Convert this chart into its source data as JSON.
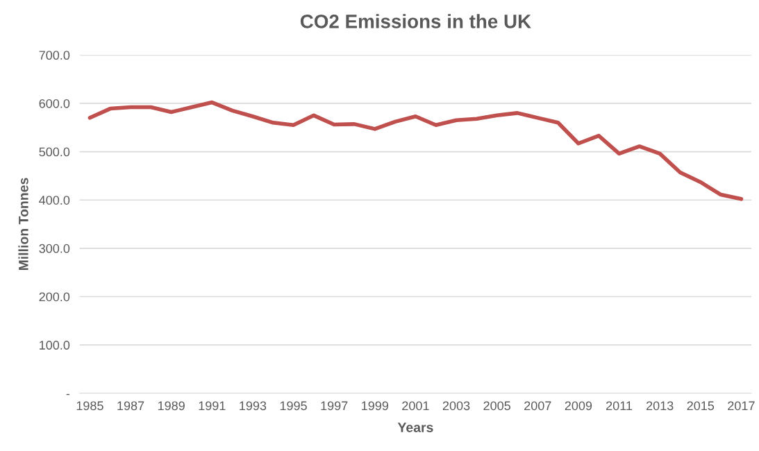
{
  "chart_data": {
    "type": "line",
    "title": "CO2 Emissions in the UK",
    "xlabel": "Years",
    "ylabel": "Million Tonnes",
    "categories": [
      "1985",
      null,
      "1987",
      null,
      "1989",
      null,
      "1991",
      null,
      "1993",
      null,
      "1995",
      null,
      "1997",
      null,
      "1999",
      null,
      "2001",
      null,
      "2003",
      null,
      "2005",
      null,
      "2007",
      null,
      "2009",
      null,
      "2011",
      null,
      "2013",
      null,
      "2015",
      null,
      "2017"
    ],
    "series": [
      {
        "color": "#c0504d",
        "values": [
          570,
          589,
          592,
          592,
          582,
          592,
          602,
          585,
          573,
          560,
          555,
          575,
          556,
          557,
          547,
          562,
          573,
          555,
          565,
          568,
          575,
          580,
          570,
          560,
          517,
          533,
          496,
          511,
          496,
          457,
          437,
          411,
          402
        ]
      }
    ],
    "ylim": [
      0,
      700
    ],
    "yticks": [
      {
        "value": 0,
        "label": "-"
      },
      {
        "value": 100,
        "label": "100.0"
      },
      {
        "value": 200,
        "label": "200.0"
      },
      {
        "value": 300,
        "label": "300.0"
      },
      {
        "value": 400,
        "label": "400.0"
      },
      {
        "value": 500,
        "label": "500.0"
      },
      {
        "value": 600,
        "label": "600.0"
      },
      {
        "value": 700,
        "label": "700.0"
      }
    ],
    "grid": "y",
    "marker": "none",
    "line_style": "solid"
  }
}
